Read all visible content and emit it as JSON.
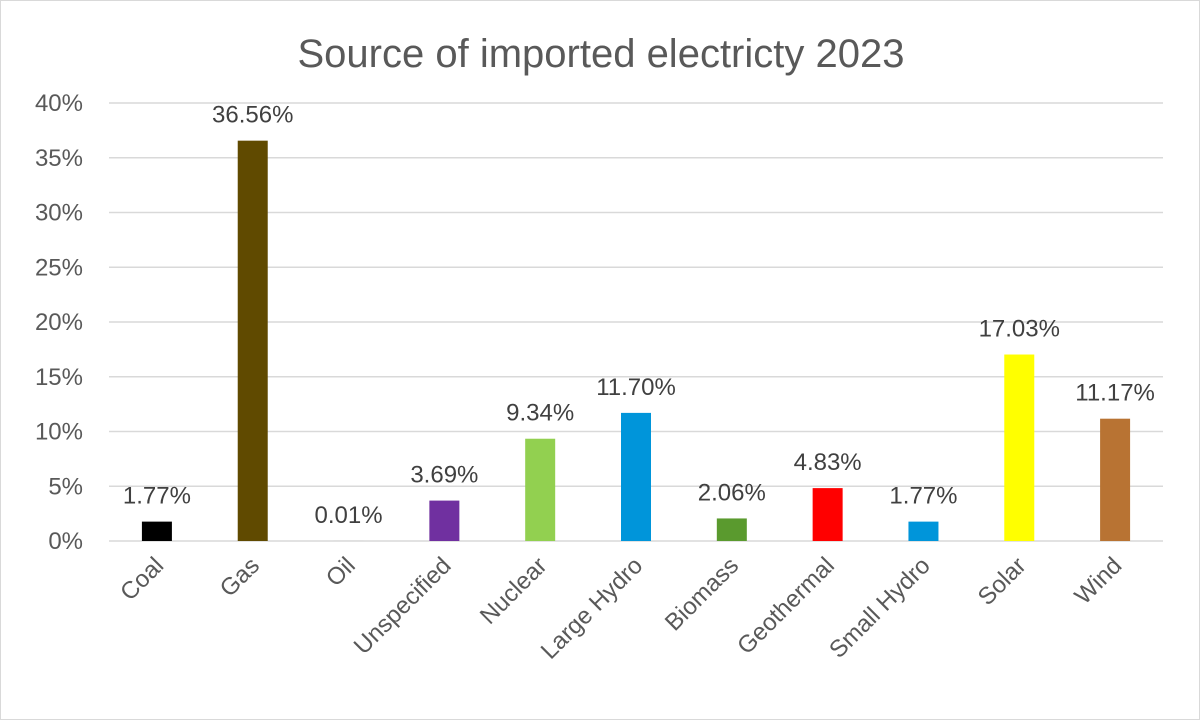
{
  "chart_data": {
    "type": "bar",
    "title": "Source of imported electricty 2023",
    "xlabel": "",
    "ylabel": "",
    "ylim": [
      0,
      40
    ],
    "ytick_values": [
      0,
      5,
      10,
      15,
      20,
      25,
      30,
      35,
      40
    ],
    "ytick_labels": [
      "0%",
      "5%",
      "10%",
      "15%",
      "20%",
      "25%",
      "30%",
      "35%",
      "40%"
    ],
    "grid": true,
    "legend": "none",
    "categories": [
      "Coal",
      "Gas",
      "Oil",
      "Unspecified",
      "Nuclear",
      "Large Hydro",
      "Biomass",
      "Geothermal",
      "Small Hydro",
      "Solar",
      "Wind"
    ],
    "values": [
      1.77,
      36.56,
      0.01,
      3.69,
      9.34,
      11.7,
      2.06,
      4.83,
      1.77,
      17.03,
      11.17
    ],
    "data_labels": [
      "1.77%",
      "36.56%",
      "0.01%",
      "3.69%",
      "9.34%",
      "11.70%",
      "2.06%",
      "4.83%",
      "1.77%",
      "17.03%",
      "11.17%"
    ],
    "colors": [
      "#000000",
      "#604A00",
      "#C0C0C0",
      "#7030A0",
      "#92D050",
      "#0095DA",
      "#5A9A2E",
      "#FF0000",
      "#0095DA",
      "#FFFF00",
      "#B87333"
    ]
  }
}
